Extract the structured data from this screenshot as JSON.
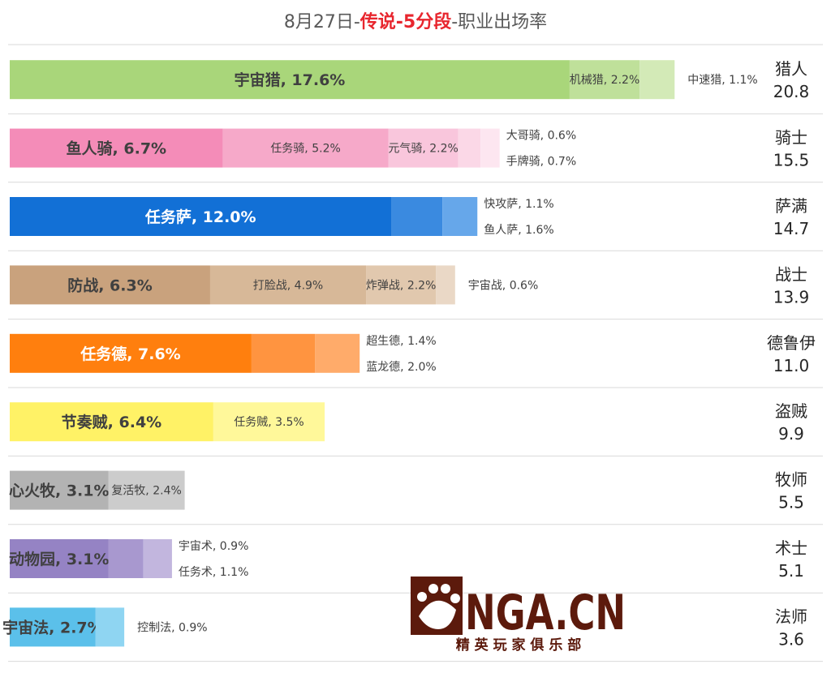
{
  "title": {
    "prefix": "8月27日-",
    "highlight": "传说-5分段",
    "suffix": "-职业出场率",
    "highlight_color": "#e8262e"
  },
  "watermark": {
    "logo_text": "NGA.CN",
    "slogan": "精 英 玩 家 俱 乐 部",
    "color": "#5c1a0c"
  },
  "chart_data": {
    "type": "bar",
    "stacked": true,
    "orientation": "horizontal",
    "unit": "%",
    "xlim": [
      0,
      27
    ],
    "grid": false,
    "classes": [
      {
        "name": "猎人",
        "total": "20.8",
        "colors": [
          "#a9d67a",
          "#bfe09a",
          "#d3eab7"
        ],
        "segments": [
          {
            "label": "宇宙猎",
            "value": 17.6,
            "shown": "17.6%"
          },
          {
            "label": "机械猎",
            "value": 2.2,
            "shown": "2.2%"
          },
          {
            "label": "中速猎",
            "value": 1.1,
            "shown": "1.1%"
          }
        ]
      },
      {
        "name": "骑士",
        "total": "15.5",
        "colors": [
          "#f48cb8",
          "#f6a9c9",
          "#f9c6dc",
          "#fbd8e7",
          "#fde6f0"
        ],
        "segments": [
          {
            "label": "鱼人骑",
            "value": 6.7,
            "shown": "6.7%"
          },
          {
            "label": "任务骑",
            "value": 5.2,
            "shown": "5.2%"
          },
          {
            "label": "元气骑",
            "value": 2.2,
            "shown": "2.2%"
          },
          {
            "label": "手牌骑",
            "value": 0.7,
            "shown": "0.7%"
          },
          {
            "label": "大哥骑",
            "value": 0.6,
            "shown": "0.6%"
          }
        ]
      },
      {
        "name": "萨满",
        "total": "14.7",
        "colors": [
          "#1270d6",
          "#3a8ae0",
          "#66a7ea"
        ],
        "segments": [
          {
            "label": "任务萨",
            "value": 12.0,
            "shown": "12.0%"
          },
          {
            "label": "鱼人萨",
            "value": 1.6,
            "shown": "1.6%"
          },
          {
            "label": "快攻萨",
            "value": 1.1,
            "shown": "1.1%"
          }
        ]
      },
      {
        "name": "战士",
        "total": "13.9",
        "colors": [
          "#c9a27d",
          "#d7b898",
          "#e1c8ae",
          "#ead8c6"
        ],
        "segments": [
          {
            "label": "防战",
            "value": 6.3,
            "shown": "6.3%"
          },
          {
            "label": "打脸战",
            "value": 4.9,
            "shown": "4.9%"
          },
          {
            "label": "炸弹战",
            "value": 2.2,
            "shown": "2.2%"
          },
          {
            "label": "宇宙战",
            "value": 0.6,
            "shown": "0.6%"
          }
        ]
      },
      {
        "name": "德鲁伊",
        "total": "11.0",
        "colors": [
          "#ff7f0e",
          "#ff9440",
          "#ffab6a"
        ],
        "segments": [
          {
            "label": "任务德",
            "value": 7.6,
            "shown": "7.6%"
          },
          {
            "label": "蓝龙德",
            "value": 2.0,
            "shown": "2.0%"
          },
          {
            "label": "超生德",
            "value": 1.4,
            "shown": "1.4%"
          }
        ]
      },
      {
        "name": "盗贼",
        "total": "9.9",
        "colors": [
          "#fff266",
          "#fff89a"
        ],
        "segments": [
          {
            "label": "节奏贼",
            "value": 6.4,
            "shown": "6.4%"
          },
          {
            "label": "任务贼",
            "value": 3.5,
            "shown": "3.5%"
          }
        ]
      },
      {
        "name": "牧师",
        "total": "5.5",
        "colors": [
          "#b3b3b3",
          "#cccccc"
        ],
        "segments": [
          {
            "label": "心火牧",
            "value": 3.1,
            "shown": "3.1%"
          },
          {
            "label": "复活牧",
            "value": 2.4,
            "shown": "2.4%"
          }
        ]
      },
      {
        "name": "术士",
        "total": "5.1",
        "colors": [
          "#9583c4",
          "#a898cf",
          "#c2b6de"
        ],
        "segments": [
          {
            "label": "动物园",
            "value": 3.1,
            "shown": "3.1%"
          },
          {
            "label": "任务术",
            "value": 1.1,
            "shown": "1.1%"
          },
          {
            "label": "宇宙术",
            "value": 0.9,
            "shown": "0.9%"
          }
        ]
      },
      {
        "name": "法师",
        "total": "3.6",
        "colors": [
          "#5bc0ea",
          "#8fd5f2"
        ],
        "segments": [
          {
            "label": "宇宙法",
            "value": 2.7,
            "shown": "2.7%"
          },
          {
            "label": "控制法",
            "value": 0.9,
            "shown": "0.9%"
          }
        ]
      }
    ]
  }
}
